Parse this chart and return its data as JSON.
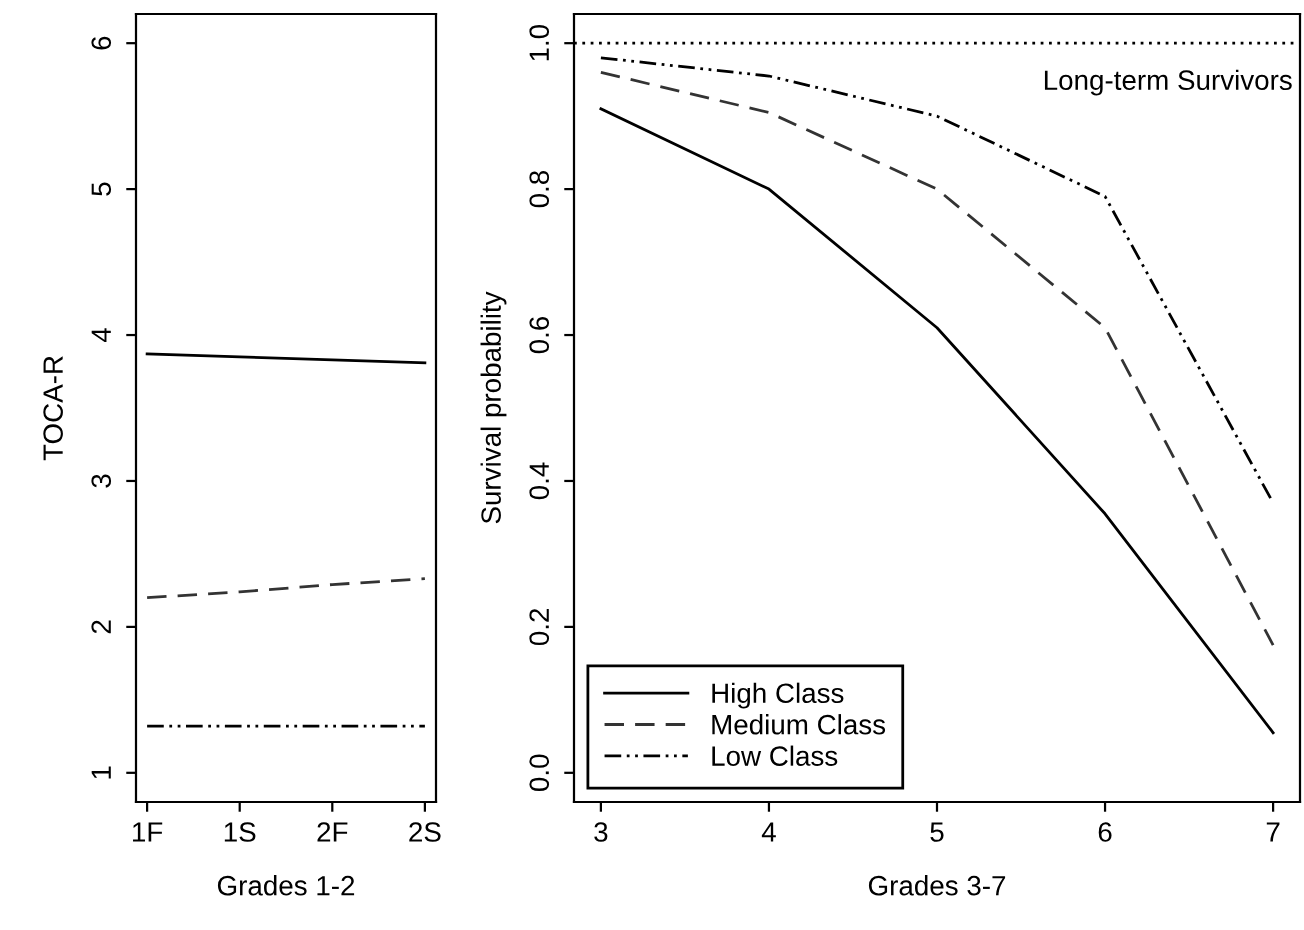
{
  "chart_data": [
    {
      "type": "line",
      "xlabel": "Grades 1-2",
      "ylabel": "TOCA-R",
      "categories": [
        "1F",
        "1S",
        "2F",
        "2S"
      ],
      "ylim": [
        0.8,
        6.2
      ],
      "yticks": [
        1,
        2,
        3,
        4,
        5,
        6
      ],
      "grid": false,
      "legend": false,
      "series": [
        {
          "color": "#000000",
          "line_style": "solid",
          "values": [
            3.87,
            3.85,
            3.83,
            3.81
          ]
        },
        {
          "color": "#333333",
          "line_style": "dashed",
          "values": [
            2.2,
            2.24,
            2.29,
            2.33
          ]
        },
        {
          "color": "#000000",
          "line_style": "dashdot",
          "values": [
            1.32,
            1.32,
            1.32,
            1.32
          ]
        }
      ]
    },
    {
      "type": "line",
      "xlabel": "Grades 3-7",
      "ylabel": "Survival probability",
      "x": [
        3,
        4,
        5,
        6,
        7
      ],
      "xlim": [
        2.84,
        7.16
      ],
      "xticks": [
        3,
        4,
        5,
        6,
        7
      ],
      "ylim": [
        -0.04,
        1.04
      ],
      "yticks": [
        {
          "value": 0,
          "label": "0.0"
        },
        0.2,
        0.4,
        0.6,
        0.8,
        {
          "value": 1,
          "label": "1.0"
        }
      ],
      "grid": false,
      "legend": "bottom left",
      "ref_lines": [
        {
          "axis": "y",
          "value": 1.0,
          "label": "Long-term Survivors",
          "color": "#000000",
          "line_style": "dotted"
        }
      ],
      "series": [
        {
          "name": "High Class",
          "color": "#000000",
          "line_style": "solid",
          "values": [
            0.91,
            0.8,
            0.61,
            0.355,
            0.055
          ]
        },
        {
          "name": "Medium Class",
          "color": "#333333",
          "line_style": "dashed",
          "values": [
            0.96,
            0.905,
            0.8,
            0.61,
            0.175
          ]
        },
        {
          "name": "Low Class",
          "color": "#000000",
          "line_style": "dashdot",
          "values": [
            0.98,
            0.955,
            0.9,
            0.79,
            0.37
          ]
        }
      ]
    }
  ]
}
